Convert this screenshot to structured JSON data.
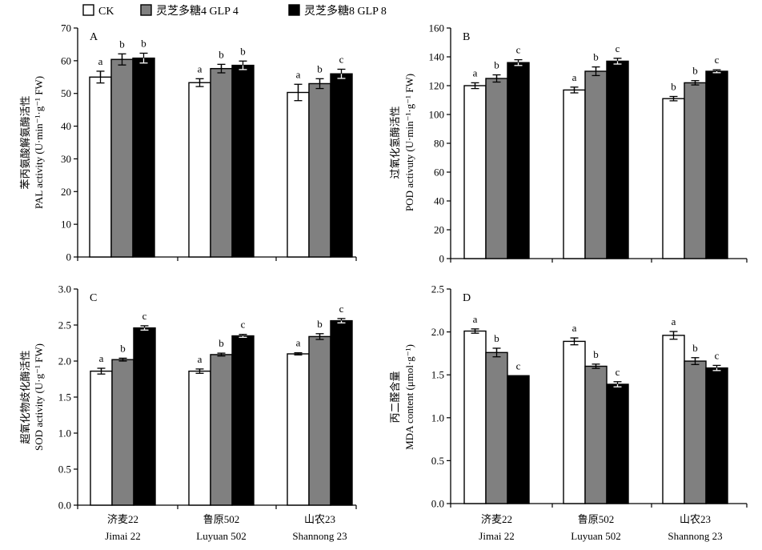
{
  "legend": [
    {
      "label": "CK",
      "color": "#ffffff"
    },
    {
      "label": "灵芝多糖4 GLP 4",
      "color": "#808080"
    },
    {
      "label": "灵芝多糖8 GLP 8",
      "color": "#000000"
    }
  ],
  "categories": [
    {
      "zh": "济麦22",
      "en": "Jimai 22"
    },
    {
      "zh": "鲁原502",
      "en": "Luyuan 502"
    },
    {
      "zh": "山农23",
      "en": "Shannong 23"
    }
  ],
  "chart_data": [
    {
      "type": "bar",
      "panel": "A",
      "ylabel_zh": "苯丙氨酸解氨酶活性",
      "ylabel_en": "PAL activity (U·min⁻¹·g⁻¹ FW)",
      "ylim": [
        0,
        70
      ],
      "yticks": [
        0,
        10,
        20,
        30,
        40,
        50,
        60,
        70
      ],
      "tick_labels": [
        "0",
        "10",
        "20",
        "30",
        "40",
        "50",
        "60",
        "70"
      ],
      "categories": [
        "Jimai 22",
        "Luyuan 502",
        "Shannong 23"
      ],
      "series": [
        {
          "values": [
            55.0,
            53.3,
            50.3
          ],
          "errors": [
            1.8,
            1.2,
            2.5
          ],
          "letters": [
            "a",
            "a",
            "a"
          ]
        },
        {
          "values": [
            60.4,
            57.6,
            53.0
          ],
          "errors": [
            1.7,
            1.3,
            1.5
          ],
          "letters": [
            "b",
            "b",
            "b"
          ]
        },
        {
          "values": [
            60.8,
            58.6,
            56.0
          ],
          "errors": [
            1.5,
            1.3,
            1.4
          ],
          "letters": [
            "b",
            "b",
            "c"
          ]
        }
      ]
    },
    {
      "type": "bar",
      "panel": "B",
      "ylabel_zh": "过氧化氢酶活性",
      "ylabel_en": "POD activuty (U·min⁻¹·g⁻¹ FW)",
      "ylim": [
        0,
        160
      ],
      "yticks": [
        0,
        20,
        40,
        60,
        80,
        100,
        120,
        140,
        160
      ],
      "tick_labels": [
        "0",
        "20",
        "40",
        "60",
        "80",
        "100",
        "120",
        "140",
        "160"
      ],
      "categories": [
        "Jimai 22",
        "Luyuan 502",
        "Shannong 23"
      ],
      "series": [
        {
          "values": [
            120.0,
            117.0,
            111.0
          ],
          "errors": [
            2.0,
            2.0,
            1.5
          ],
          "letters": [
            "a",
            "a",
            "b"
          ]
        },
        {
          "values": [
            125.0,
            130.0,
            122.0
          ],
          "errors": [
            2.5,
            3.0,
            1.5
          ],
          "letters": [
            "b",
            "b",
            "b"
          ]
        },
        {
          "values": [
            136.0,
            137.0,
            130.0
          ],
          "errors": [
            2.0,
            2.0,
            1.0
          ],
          "letters": [
            "c",
            "c",
            "c"
          ]
        }
      ]
    },
    {
      "type": "bar",
      "panel": "C",
      "ylabel_zh": "超氧化物歧化酶活性",
      "ylabel_en": "SOD activity (U·g⁻¹ FW)",
      "ylim": [
        0,
        3
      ],
      "yticks": [
        0,
        0.5,
        1.0,
        1.5,
        2.0,
        2.5,
        3.0
      ],
      "tick_labels": [
        "0.0",
        "0.5",
        "1.0",
        "1.5",
        "2.0",
        "2.5",
        "3.0"
      ],
      "categories": [
        "Jimai 22",
        "Luyuan 502",
        "Shannong 23"
      ],
      "series": [
        {
          "values": [
            1.86,
            1.86,
            2.1
          ],
          "errors": [
            0.04,
            0.03,
            0.015
          ],
          "letters": [
            "a",
            "a",
            "a"
          ]
        },
        {
          "values": [
            2.02,
            2.09,
            2.34
          ],
          "errors": [
            0.02,
            0.02,
            0.04
          ],
          "letters": [
            "b",
            "b",
            "b"
          ]
        },
        {
          "values": [
            2.46,
            2.35,
            2.56
          ],
          "errors": [
            0.03,
            0.02,
            0.03
          ],
          "letters": [
            "c",
            "c",
            "c"
          ]
        }
      ]
    },
    {
      "type": "bar",
      "panel": "D",
      "ylabel_zh": "丙二醛含量",
      "ylabel_en": "MDA content (μmol·g⁻¹)",
      "ylim": [
        0,
        2.5
      ],
      "yticks": [
        0,
        0.5,
        1.0,
        1.5,
        2.0,
        2.5
      ],
      "tick_labels": [
        "0.0",
        "0.5",
        "1.0",
        "1.5",
        "2.0",
        "2.5"
      ],
      "categories": [
        "Jimai 22",
        "Luyuan 502",
        "Shannong 23"
      ],
      "series": [
        {
          "values": [
            2.01,
            1.89,
            1.96
          ],
          "errors": [
            0.025,
            0.04,
            0.045
          ],
          "letters": [
            "a",
            "a",
            "a"
          ]
        },
        {
          "values": [
            1.76,
            1.6,
            1.66
          ],
          "errors": [
            0.05,
            0.025,
            0.04
          ],
          "letters": [
            "b",
            "b",
            "b"
          ]
        },
        {
          "values": [
            1.49,
            1.39,
            1.58
          ],
          "errors": [
            0.0,
            0.03,
            0.03
          ],
          "letters": [
            "c",
            "c",
            "c"
          ]
        }
      ]
    }
  ]
}
